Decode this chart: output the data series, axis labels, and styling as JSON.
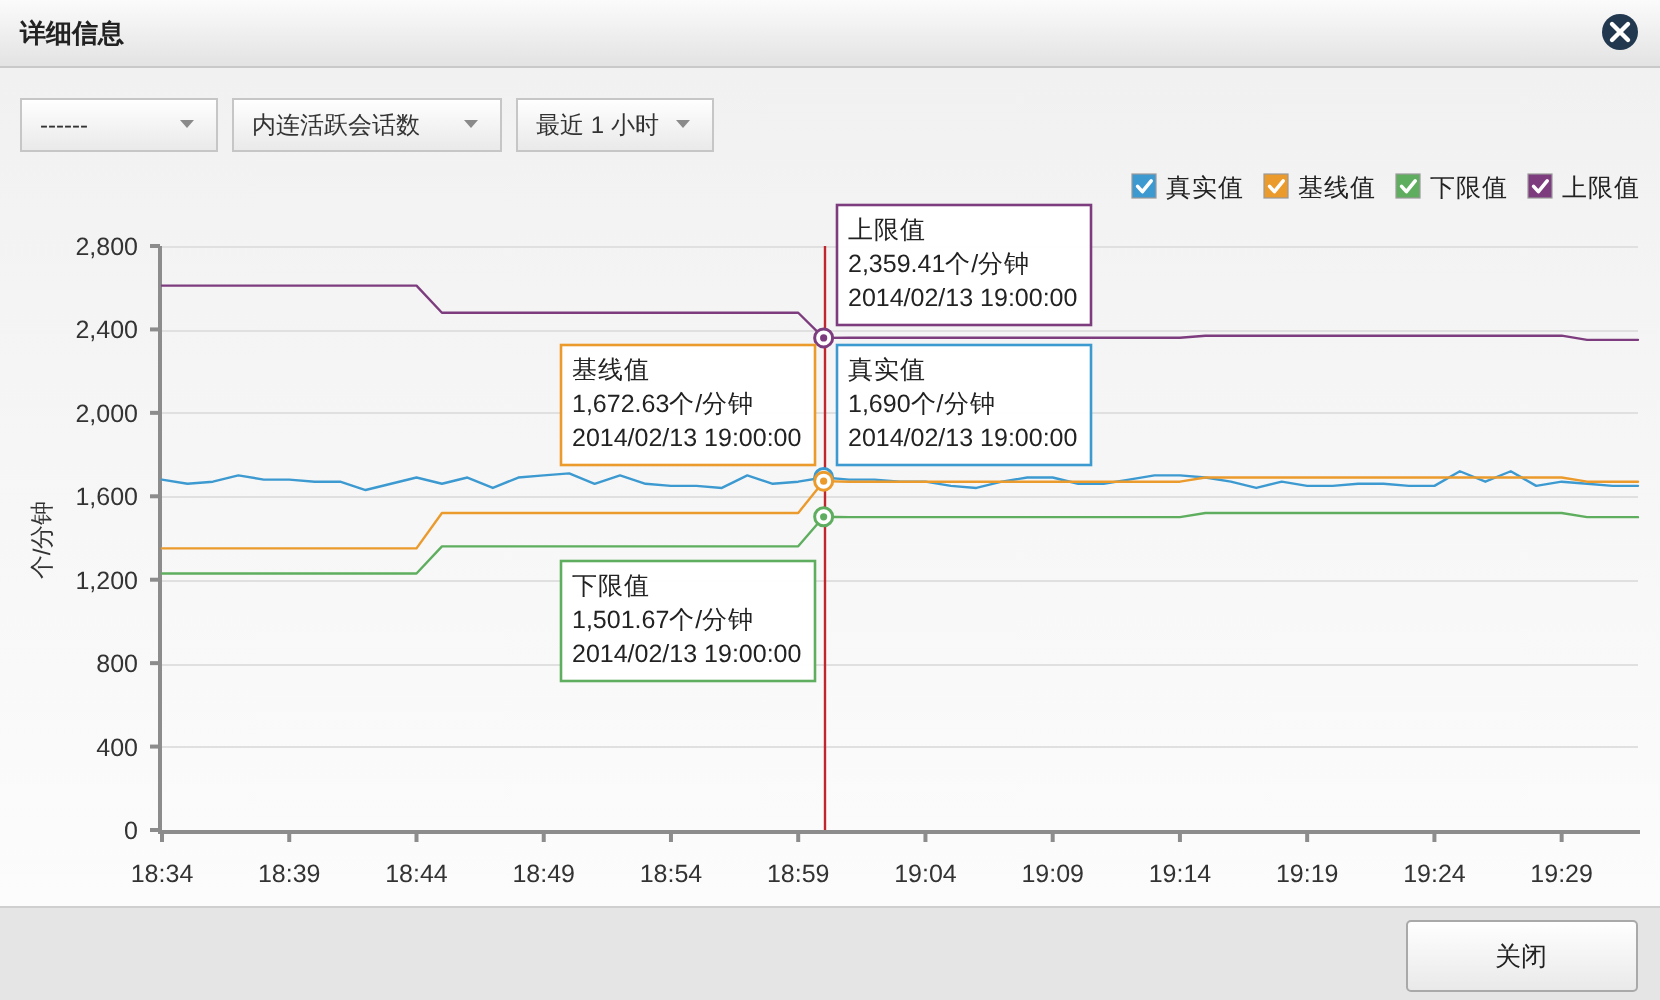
{
  "chart_data": {
    "type": "line",
    "title": "详细信息",
    "ylabel": "个/分钟",
    "x": [
      "2014-02-13T18:34",
      "2014-02-13T18:35",
      "2014-02-13T18:36",
      "2014-02-13T18:37",
      "2014-02-13T18:38",
      "2014-02-13T18:39",
      "2014-02-13T18:40",
      "2014-02-13T18:41",
      "2014-02-13T18:42",
      "2014-02-13T18:43",
      "2014-02-13T18:44",
      "2014-02-13T18:45",
      "2014-02-13T18:46",
      "2014-02-13T18:47",
      "2014-02-13T18:48",
      "2014-02-13T18:49",
      "2014-02-13T18:50",
      "2014-02-13T18:51",
      "2014-02-13T18:52",
      "2014-02-13T18:53",
      "2014-02-13T18:54",
      "2014-02-13T18:55",
      "2014-02-13T18:56",
      "2014-02-13T18:57",
      "2014-02-13T18:58",
      "2014-02-13T18:59",
      "2014-02-13T19:00",
      "2014-02-13T19:01",
      "2014-02-13T19:02",
      "2014-02-13T19:03",
      "2014-02-13T19:04",
      "2014-02-13T19:05",
      "2014-02-13T19:06",
      "2014-02-13T19:07",
      "2014-02-13T19:08",
      "2014-02-13T19:09",
      "2014-02-13T19:10",
      "2014-02-13T19:11",
      "2014-02-13T19:12",
      "2014-02-13T19:13",
      "2014-02-13T19:14",
      "2014-02-13T19:15",
      "2014-02-13T19:16",
      "2014-02-13T19:17",
      "2014-02-13T19:18",
      "2014-02-13T19:19",
      "2014-02-13T19:20",
      "2014-02-13T19:21",
      "2014-02-13T19:22",
      "2014-02-13T19:23",
      "2014-02-13T19:24",
      "2014-02-13T19:25",
      "2014-02-13T19:26",
      "2014-02-13T19:27",
      "2014-02-13T19:28",
      "2014-02-13T19:29",
      "2014-02-13T19:30",
      "2014-02-13T19:31",
      "2014-02-13T19:32"
    ],
    "series": [
      {
        "name": "真实值",
        "color": "#3d9ad1",
        "values": [
          1680,
          1660,
          1670,
          1700,
          1680,
          1680,
          1670,
          1670,
          1630,
          1660,
          1690,
          1660,
          1690,
          1640,
          1690,
          1700,
          1710,
          1660,
          1700,
          1660,
          1650,
          1650,
          1640,
          1700,
          1660,
          1670,
          1690,
          1680,
          1680,
          1670,
          1670,
          1650,
          1640,
          1670,
          1690,
          1690,
          1660,
          1660,
          1680,
          1700,
          1700,
          1690,
          1670,
          1640,
          1670,
          1650,
          1650,
          1660,
          1660,
          1650,
          1650,
          1720,
          1670,
          1720,
          1650,
          1670,
          1660,
          1650,
          1650
        ]
      },
      {
        "name": "基线值",
        "color": "#eb9a2c",
        "values": [
          1350,
          1350,
          1350,
          1350,
          1350,
          1350,
          1350,
          1350,
          1350,
          1350,
          1350,
          1520,
          1520,
          1520,
          1520,
          1520,
          1520,
          1520,
          1520,
          1520,
          1520,
          1520,
          1520,
          1520,
          1520,
          1520,
          1672.63,
          1670,
          1670,
          1670,
          1670,
          1670,
          1670,
          1670,
          1670,
          1670,
          1670,
          1670,
          1670,
          1670,
          1670,
          1690,
          1690,
          1690,
          1690,
          1690,
          1690,
          1690,
          1690,
          1690,
          1690,
          1690,
          1690,
          1690,
          1690,
          1690,
          1670,
          1670,
          1670
        ]
      },
      {
        "name": "下限值",
        "color": "#5fae5f",
        "values": [
          1230,
          1230,
          1230,
          1230,
          1230,
          1230,
          1230,
          1230,
          1230,
          1230,
          1230,
          1360,
          1360,
          1360,
          1360,
          1360,
          1360,
          1360,
          1360,
          1360,
          1360,
          1360,
          1360,
          1360,
          1360,
          1360,
          1501.67,
          1500,
          1500,
          1500,
          1500,
          1500,
          1500,
          1500,
          1500,
          1500,
          1500,
          1500,
          1500,
          1500,
          1500,
          1520,
          1520,
          1520,
          1520,
          1520,
          1520,
          1520,
          1520,
          1520,
          1520,
          1520,
          1520,
          1520,
          1520,
          1520,
          1500,
          1500,
          1500
        ]
      },
      {
        "name": "上限值",
        "color": "#7d3c7d",
        "values": [
          2610,
          2610,
          2610,
          2610,
          2610,
          2610,
          2610,
          2610,
          2610,
          2610,
          2610,
          2480,
          2480,
          2480,
          2480,
          2480,
          2480,
          2480,
          2480,
          2480,
          2480,
          2480,
          2480,
          2480,
          2480,
          2480,
          2359.41,
          2360,
          2360,
          2360,
          2360,
          2360,
          2360,
          2360,
          2360,
          2360,
          2360,
          2360,
          2360,
          2360,
          2360,
          2370,
          2370,
          2370,
          2370,
          2370,
          2370,
          2370,
          2370,
          2370,
          2370,
          2370,
          2370,
          2370,
          2370,
          2370,
          2350,
          2350,
          2350
        ]
      }
    ],
    "xlim": [
      "2014-02-13T18:34",
      "2014-02-13T19:32"
    ],
    "xticks": [
      {
        "value": "2014-02-13T18:34",
        "label": "18:34"
      },
      {
        "value": "2014-02-13T18:39",
        "label": "18:39"
      },
      {
        "value": "2014-02-13T18:44",
        "label": "18:44"
      },
      {
        "value": "2014-02-13T18:49",
        "label": "18:49"
      },
      {
        "value": "2014-02-13T18:54",
        "label": "18:54"
      },
      {
        "value": "2014-02-13T18:59",
        "label": "18:59"
      },
      {
        "value": "2014-02-13T19:04",
        "label": "19:04"
      },
      {
        "value": "2014-02-13T19:09",
        "label": "19:09"
      },
      {
        "value": "2014-02-13T19:14",
        "label": "19:14"
      },
      {
        "value": "2014-02-13T19:19",
        "label": "19:19"
      },
      {
        "value": "2014-02-13T19:24",
        "label": "19:24"
      },
      {
        "value": "2014-02-13T19:29",
        "label": "19:29"
      }
    ],
    "ylim": [
      0,
      2800
    ],
    "yticks": [
      0,
      400,
      800,
      {
        "value": 1200,
        "label": "1,200"
      },
      {
        "value": 1600,
        "label": "1,600"
      },
      {
        "value": 2000,
        "label": "2,000"
      },
      {
        "value": 2400,
        "label": "2,400"
      },
      {
        "value": 2800,
        "label": "2,800"
      }
    ],
    "grid": "y",
    "legend": "top right",
    "ref_lines": [
      {
        "axis": "x",
        "value": "2014-02-13T19:00",
        "color": "#c0272d"
      }
    ],
    "annotations": [
      {
        "text": "上限值\n2,359.41个/分钟\n2014/02/13 19:00:00",
        "x": "2014-02-13T19:00",
        "y": 2359.41
      },
      {
        "text": "真实值\n1,690个/分钟\n2014/02/13 19:00:00",
        "x": "2014-02-13T19:00",
        "y": 1690
      },
      {
        "text": "基线值\n1,672.63个/分钟\n2014/02/13 19:00:00",
        "x": "2014-02-13T19:00",
        "y": 1672.63
      },
      {
        "text": "下限值\n1,501.67个/分钟\n2014/02/13 19:00:00",
        "x": "2014-02-13T19:00",
        "y": 1501.67
      },
      "------",
      "内连活跃会话数",
      "最近 1 小时",
      "关闭"
    ]
  }
}
